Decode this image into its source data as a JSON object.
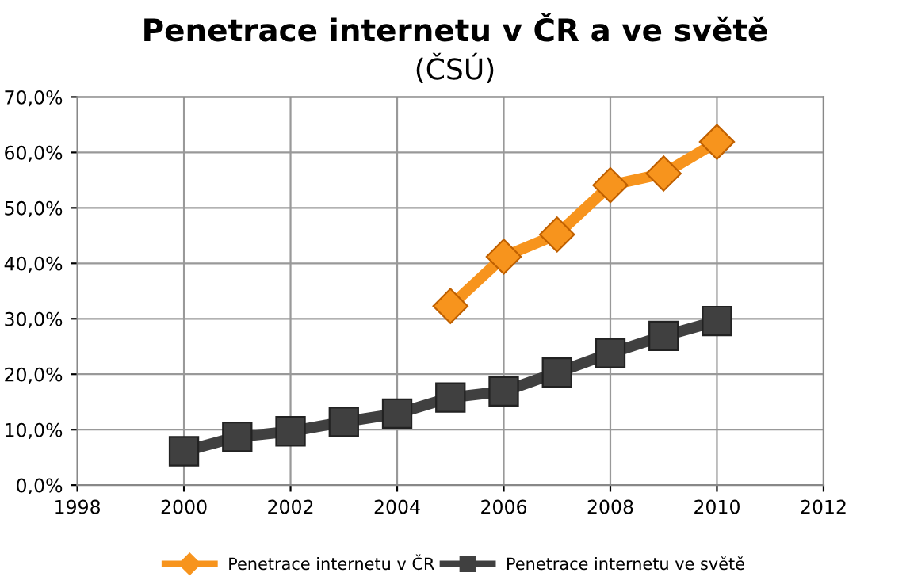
{
  "chart_data": {
    "type": "line",
    "title": "Penetrace internetu v ČR a ve světě",
    "subtitle": "(ČSÚ)",
    "xlim": [
      1998,
      2012
    ],
    "xticks": [
      1998,
      2000,
      2002,
      2004,
      2006,
      2008,
      2010,
      2012
    ],
    "ylim": [
      0,
      70
    ],
    "yticks": [
      {
        "value": 0,
        "label": "0,0%"
      },
      {
        "value": 10,
        "label": "10,0%"
      },
      {
        "value": 20,
        "label": "20,0%"
      },
      {
        "value": 30,
        "label": "30,0%"
      },
      {
        "value": 40,
        "label": "40,0%"
      },
      {
        "value": 50,
        "label": "50,0%"
      },
      {
        "value": 60,
        "label": "60,0%"
      },
      {
        "value": 70,
        "label": "70,0%"
      }
    ],
    "grid": true,
    "legend": "bottom",
    "line_style": "solid",
    "series": [
      {
        "name": "Penetrace internetu v ČR",
        "color": "#f7941d",
        "marker": "diamond",
        "x": [
          2005,
          2006,
          2007,
          2008,
          2009,
          2010
        ],
        "values": [
          32.3,
          41.2,
          45.2,
          54.1,
          56.2,
          61.9
        ]
      },
      {
        "name": "Penetrace internetu ve světě",
        "color": "#404040",
        "marker": "square",
        "x": [
          2000,
          2001,
          2002,
          2003,
          2004,
          2005,
          2006,
          2007,
          2008,
          2009,
          2010
        ],
        "values": [
          6.1,
          8.7,
          9.7,
          11.4,
          12.9,
          15.8,
          16.9,
          20.3,
          23.8,
          26.9,
          29.6
        ]
      }
    ]
  }
}
